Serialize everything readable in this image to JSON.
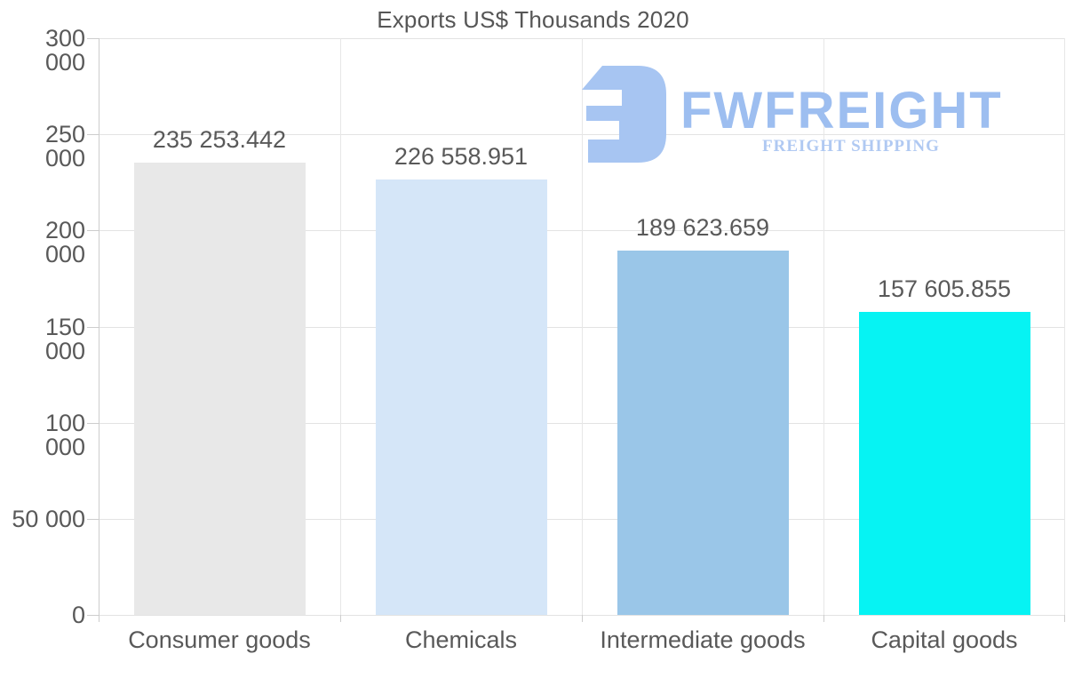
{
  "chart_data": {
    "type": "bar",
    "title": "Exports US$ Thousands 2020",
    "categories": [
      "Consumer goods",
      "Chemicals",
      "Intermediate goods",
      "Capital goods"
    ],
    "values": [
      235253.442,
      226558.951,
      189623.659,
      157605.855
    ],
    "value_labels": [
      "235 253.442",
      "226 558.951",
      "189 623.659",
      "157 605.855"
    ],
    "bar_colors": [
      "#e8e8e8",
      "#d5e6f8",
      "#9ac6e8",
      "#06f3f3"
    ],
    "ylim": [
      0,
      300000
    ],
    "ytick_step": 50000,
    "ytick_labels": [
      "0",
      "50 000",
      "100 000",
      "150 000",
      "200 000",
      "250 000",
      "300 000"
    ],
    "xlabel": "",
    "ylabel": "",
    "grid": true,
    "legend": "none"
  },
  "watermark": {
    "brand": "FWFREIGHT",
    "tagline": "FREIGHT SHIPPING",
    "icon": "fwfreight-logo-icon",
    "brand_color": "#9dbef0",
    "tagline_color": "#b0c9f2",
    "icon_color": "#a7c5f2"
  },
  "colors": {
    "background": "#ffffff",
    "text": "#595959",
    "title_text": "#565656",
    "gridline": "#e3e3e3",
    "axis_line": "#cdcdcd"
  }
}
